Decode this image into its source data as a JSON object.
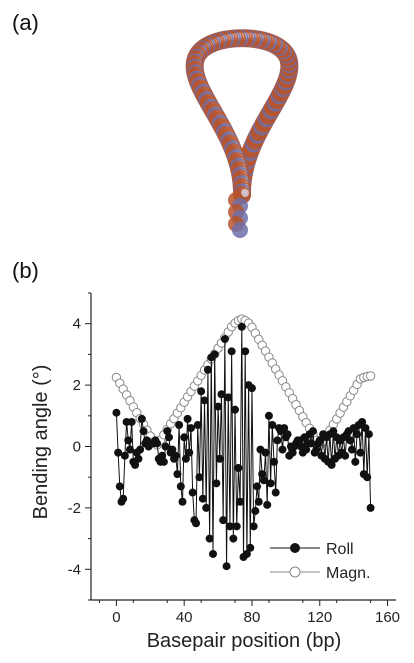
{
  "figure": {
    "panel_a_label": "(a)",
    "panel_b_label": "(b)",
    "panel_a_image": "dna-minicircle-loop-molecular-model"
  },
  "colors": {
    "roll_series": "#111111",
    "magn_series": "#888888",
    "axis": "#222222",
    "molecule_backbone": "#b9542a",
    "molecule_base": "#6f6fa8"
  },
  "chart_data": {
    "type": "line",
    "xlabel": "Basepair position (bp)",
    "ylabel": "Bending angle (°)",
    "xlim": [
      -15,
      165
    ],
    "ylim": [
      -5,
      5
    ],
    "xticks": [
      0,
      40,
      80,
      120,
      160
    ],
    "yticks": [
      -4,
      -2,
      0,
      2,
      4
    ],
    "grid": false,
    "legend_position": "bottom-right",
    "series": [
      {
        "name": "Roll",
        "marker": "filled-circle",
        "x": [
          0,
          1,
          2,
          3,
          4,
          5,
          6,
          7,
          8,
          9,
          10,
          11,
          12,
          13,
          14,
          15,
          16,
          17,
          18,
          19,
          20,
          21,
          22,
          23,
          24,
          25,
          26,
          27,
          28,
          29,
          30,
          31,
          32,
          33,
          34,
          35,
          36,
          37,
          38,
          39,
          40,
          41,
          42,
          43,
          44,
          45,
          46,
          47,
          48,
          49,
          50,
          51,
          52,
          53,
          54,
          55,
          56,
          57,
          58,
          59,
          60,
          61,
          62,
          63,
          64,
          65,
          66,
          67,
          68,
          69,
          70,
          71,
          72,
          73,
          74,
          75,
          76,
          77,
          78,
          79,
          80,
          81,
          82,
          83,
          84,
          85,
          86,
          87,
          88,
          89,
          90,
          91,
          92,
          93,
          94,
          95,
          96,
          97,
          98,
          99,
          100,
          101,
          102,
          103,
          104,
          105,
          106,
          107,
          108,
          109,
          110,
          111,
          112,
          113,
          114,
          115,
          116,
          117,
          118,
          119,
          120,
          121,
          122,
          123,
          124,
          125,
          126,
          127,
          128,
          129,
          130,
          131,
          132,
          133,
          134,
          135,
          136,
          137,
          138,
          139,
          140,
          141,
          142,
          143,
          144,
          145,
          146,
          147,
          148,
          149,
          150
        ],
        "y": [
          1.1,
          -0.2,
          -1.3,
          -1.8,
          -1.7,
          -0.3,
          0.8,
          0.2,
          -0.1,
          0.8,
          -0.5,
          -0.6,
          -0.2,
          -0.4,
          -0.1,
          0.9,
          0.5,
          0.1,
          0.2,
          0.0,
          0.1,
          0.1,
          0.1,
          0.2,
          0.1,
          -0.4,
          -0.5,
          -0.3,
          -0.5,
          0.0,
          0.5,
          0.3,
          -0.2,
          -0.1,
          -0.4,
          -0.3,
          -0.9,
          0.7,
          -1.3,
          -1.8,
          0.3,
          -0.4,
          0.9,
          -0.2,
          0.6,
          -1.5,
          -2.4,
          -2.5,
          0.7,
          -1.0,
          1.8,
          -1.7,
          1.5,
          -2.0,
          2.5,
          -3.0,
          2.9,
          -3.5,
          3.0,
          -1.2,
          1.3,
          -0.4,
          1.7,
          -2.4,
          3.5,
          -3.9,
          1.6,
          -2.6,
          3.1,
          -3.0,
          1.2,
          -2.6,
          -0.7,
          -1.8,
          3.9,
          -3.6,
          3.1,
          -3.5,
          2.0,
          -3.3,
          1.9,
          -2.6,
          -2.1,
          -1.3,
          -1.8,
          -0.1,
          -0.9,
          -1.1,
          -0.2,
          -1.9,
          1.0,
          -1.2,
          0.7,
          -0.5,
          -1.5,
          0.2,
          0.6,
          0.5,
          -0.1,
          0.6,
          0.3,
          0.4,
          -0.3,
          0.0,
          -0.2,
          0.0,
          0.1,
          0.2,
          0.2,
          0.0,
          -0.2,
          0.3,
          -0.1,
          0.1,
          0.4,
          0.1,
          0.5,
          -0.2,
          -0.1,
          0.1,
          0.2,
          -0.3,
          0.4,
          -0.4,
          0.3,
          -0.5,
          0.4,
          -0.6,
          0.5,
          -0.4,
          0.3,
          -0.3,
          0.2,
          -0.2,
          0.3,
          -0.3,
          0.4,
          0.5,
          0.2,
          -0.1,
          0.6,
          -0.5,
          0.4,
          0.7,
          -0.2,
          0.8,
          -0.9,
          0.6,
          -1.0,
          0.4,
          -2.0
        ]
      },
      {
        "name": "Magn.",
        "marker": "open-circle",
        "x": [
          0,
          2,
          4,
          6,
          8,
          10,
          12,
          14,
          16,
          18,
          20,
          22,
          24,
          26,
          28,
          30,
          32,
          34,
          36,
          38,
          40,
          42,
          44,
          46,
          48,
          50,
          52,
          54,
          56,
          58,
          60,
          62,
          64,
          66,
          68,
          70,
          72,
          74,
          76,
          78,
          80,
          82,
          84,
          86,
          88,
          90,
          92,
          94,
          96,
          98,
          100,
          102,
          104,
          106,
          108,
          110,
          112,
          114,
          116,
          118,
          120,
          122,
          124,
          126,
          128,
          130,
          132,
          134,
          136,
          138,
          140,
          142,
          144,
          146,
          148,
          150
        ],
        "y": [
          2.25,
          2.06,
          1.87,
          1.68,
          1.49,
          1.29,
          1.1,
          0.91,
          0.72,
          0.53,
          0.34,
          0.15,
          0.05,
          0.21,
          0.38,
          0.56,
          0.74,
          0.91,
          1.09,
          1.26,
          1.44,
          1.62,
          1.79,
          1.97,
          2.14,
          2.32,
          2.49,
          2.67,
          2.85,
          3.02,
          3.2,
          3.37,
          3.55,
          3.73,
          3.9,
          4.02,
          4.1,
          4.15,
          4.1,
          4.02,
          3.88,
          3.69,
          3.49,
          3.3,
          3.11,
          2.91,
          2.72,
          2.52,
          2.33,
          2.14,
          1.94,
          1.75,
          1.56,
          1.36,
          1.17,
          0.97,
          0.78,
          0.59,
          0.39,
          0.2,
          0.05,
          0.16,
          0.35,
          0.53,
          0.72,
          0.9,
          1.09,
          1.28,
          1.46,
          1.65,
          1.83,
          2.02,
          2.2,
          2.25,
          2.28,
          2.3
        ]
      }
    ]
  }
}
